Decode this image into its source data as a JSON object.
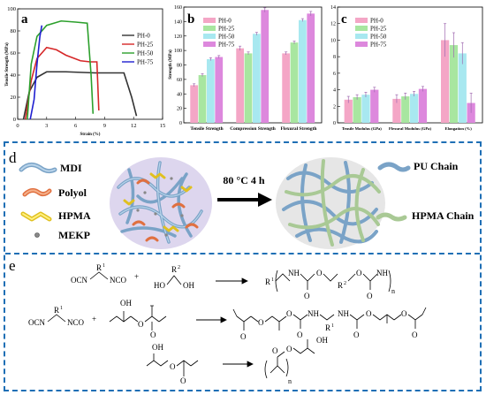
{
  "panel_a": {
    "letter": "a",
    "chart_data": {
      "type": "line",
      "xlabel": "Strain (%)",
      "ylabel": "Tensile Strength (MPa)",
      "xlim": [
        0,
        15
      ],
      "ylim": [
        0,
        100
      ],
      "xticks": [
        "0",
        "3",
        "6",
        "9",
        "12",
        "15"
      ],
      "yticks": [
        "0",
        "20",
        "40",
        "60",
        "80",
        "100"
      ],
      "legend_position": "right",
      "series": [
        {
          "name": "PH-0",
          "color": "#333333",
          "x": [
            0.6,
            1.2,
            2.0,
            3.0,
            5.0,
            8.0,
            11.0,
            11.8,
            12.3
          ],
          "y": [
            0,
            25,
            38,
            43,
            43,
            42,
            42,
            20,
            3
          ]
        },
        {
          "name": "PH-25",
          "color": "#d62728",
          "x": [
            0.8,
            1.4,
            2.0,
            3.0,
            4.0,
            5.0,
            6.5,
            7.5,
            8.2,
            8.4
          ],
          "y": [
            0,
            35,
            55,
            65,
            63,
            58,
            53,
            52,
            52,
            8
          ]
        },
        {
          "name": "PH-50",
          "color": "#2ca02c",
          "x": [
            1.0,
            1.4,
            2.0,
            3.0,
            4.5,
            6.0,
            7.2,
            7.6,
            7.8
          ],
          "y": [
            0,
            50,
            75,
            85,
            89,
            88,
            87,
            40,
            5
          ]
        },
        {
          "name": "PH-75",
          "color": "#1f1fd0",
          "x": [
            1.3,
            1.7,
            2.0,
            2.3,
            2.5
          ],
          "y": [
            0,
            18,
            50,
            75,
            85
          ]
        }
      ]
    }
  },
  "panel_b": {
    "letter": "b",
    "chart_data": {
      "type": "bar",
      "ylabel": "Strength (MPa)",
      "ylim": [
        0,
        160
      ],
      "yticks": [
        "0",
        "20",
        "40",
        "60",
        "80",
        "100",
        "120",
        "140",
        "160"
      ],
      "categories": [
        "Tensile Strength",
        "Compression Strength",
        "Flexural Strength"
      ],
      "legend_position": "top-left",
      "series": [
        {
          "name": "PH-0",
          "color": "#f4a6c6",
          "values": [
            52,
            103,
            96
          ],
          "errors": [
            2,
            3,
            2
          ]
        },
        {
          "name": "PH-25",
          "color": "#a8e6a0",
          "values": [
            66,
            96,
            111
          ],
          "errors": [
            2,
            2,
            2
          ]
        },
        {
          "name": "PH-50",
          "color": "#a8e8f0",
          "values": [
            88,
            123,
            142
          ],
          "errors": [
            2,
            2,
            2
          ]
        },
        {
          "name": "PH-75",
          "color": "#dd88dd",
          "values": [
            91,
            156,
            151
          ],
          "errors": [
            2,
            3,
            3
          ]
        }
      ]
    }
  },
  "panel_c": {
    "letter": "c",
    "chart_data": {
      "type": "bar",
      "ylim": [
        0,
        14
      ],
      "yticks": [
        "0",
        "2",
        "4",
        "6",
        "8",
        "10",
        "12",
        "14"
      ],
      "categories": [
        "Tensile Modulus (GPa)",
        "Flexural Modulus (GPa)",
        "Elongation (%)"
      ],
      "legend_position": "top-left",
      "series": [
        {
          "name": "PH-0",
          "color": "#f4a6c6",
          "values": [
            2.8,
            2.9,
            10.0
          ],
          "errors": [
            0.4,
            0.5,
            2.0
          ]
        },
        {
          "name": "PH-25",
          "color": "#a8e6a0",
          "values": [
            3.1,
            3.2,
            9.4
          ],
          "errors": [
            0.3,
            0.4,
            1.5
          ]
        },
        {
          "name": "PH-50",
          "color": "#a8e8f0",
          "values": [
            3.4,
            3.5,
            8.4
          ],
          "errors": [
            0.3,
            0.3,
            1.3
          ]
        },
        {
          "name": "PH-75",
          "color": "#dd88dd",
          "values": [
            4.0,
            4.1,
            2.4
          ],
          "errors": [
            0.3,
            0.3,
            1.2
          ]
        }
      ]
    }
  },
  "panel_d": {
    "letter": "d",
    "legend": [
      "MDI",
      "Polyol",
      "HPMA",
      "MEKP"
    ],
    "arrow_label": "80 °C 4 h",
    "right_labels": [
      "PU Chain",
      "HPMA Chain"
    ]
  },
  "panel_e": {
    "letter": "e",
    "labels": {
      "ocn": "OCN",
      "nco": "NCO",
      "r1": "R",
      "r1_sup": "1",
      "r2": "R",
      "r2_sup": "2",
      "ho": "HO",
      "oh": "OH",
      "nh": "NH",
      "o": "O",
      "n": "n",
      "plus": "+"
    }
  }
}
